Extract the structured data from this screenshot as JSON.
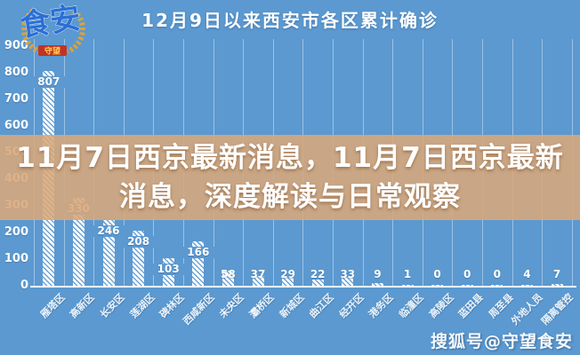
{
  "overlay": {
    "line1": "11月7日西京最新消息，11月7日西京最新",
    "line2": "消息，深度解读与日常观察",
    "full_text": "11月7日西京最新消息，11月7日西京最新消息，深度解读与日常观察"
  },
  "watermark": "搜狐号@守望食安",
  "logo": {
    "main_text": "食安",
    "ribbon_text": "守望"
  },
  "colors": {
    "background": "#5b99d0",
    "overlay_banner": "#d8a77b",
    "bar_fill": "#ffffff",
    "text": "#ffffff",
    "wreath_gold": "#d9a33c",
    "ribbon_red": "#c03328",
    "logo_blue": "#2a6fd6"
  },
  "chart_data": {
    "type": "bar",
    "title": "12月9日以来西安市各区累计确诊",
    "categories": [
      "雁塔区",
      "高新区",
      "长安区",
      "莲湖区",
      "碑林区",
      "西咸新区",
      "未央区",
      "灞桥区",
      "新城区",
      "曲江区",
      "经开区",
      "港务区",
      "临潼区",
      "高陵区",
      "蓝田县",
      "周至县",
      "外地人员",
      "隔离管控"
    ],
    "values": [
      807,
      330,
      246,
      208,
      103,
      166,
      58,
      37,
      29,
      22,
      33,
      9,
      1,
      0,
      0,
      0,
      4,
      7
    ],
    "xlabel": "",
    "ylabel": "",
    "ylim": [
      0,
      900
    ],
    "yticks": [
      900,
      800,
      700,
      600,
      500,
      400,
      300,
      200,
      100,
      0
    ],
    "legend": "none",
    "grid": "vertical",
    "bar_style": "white diagonal hatch on blue background"
  }
}
